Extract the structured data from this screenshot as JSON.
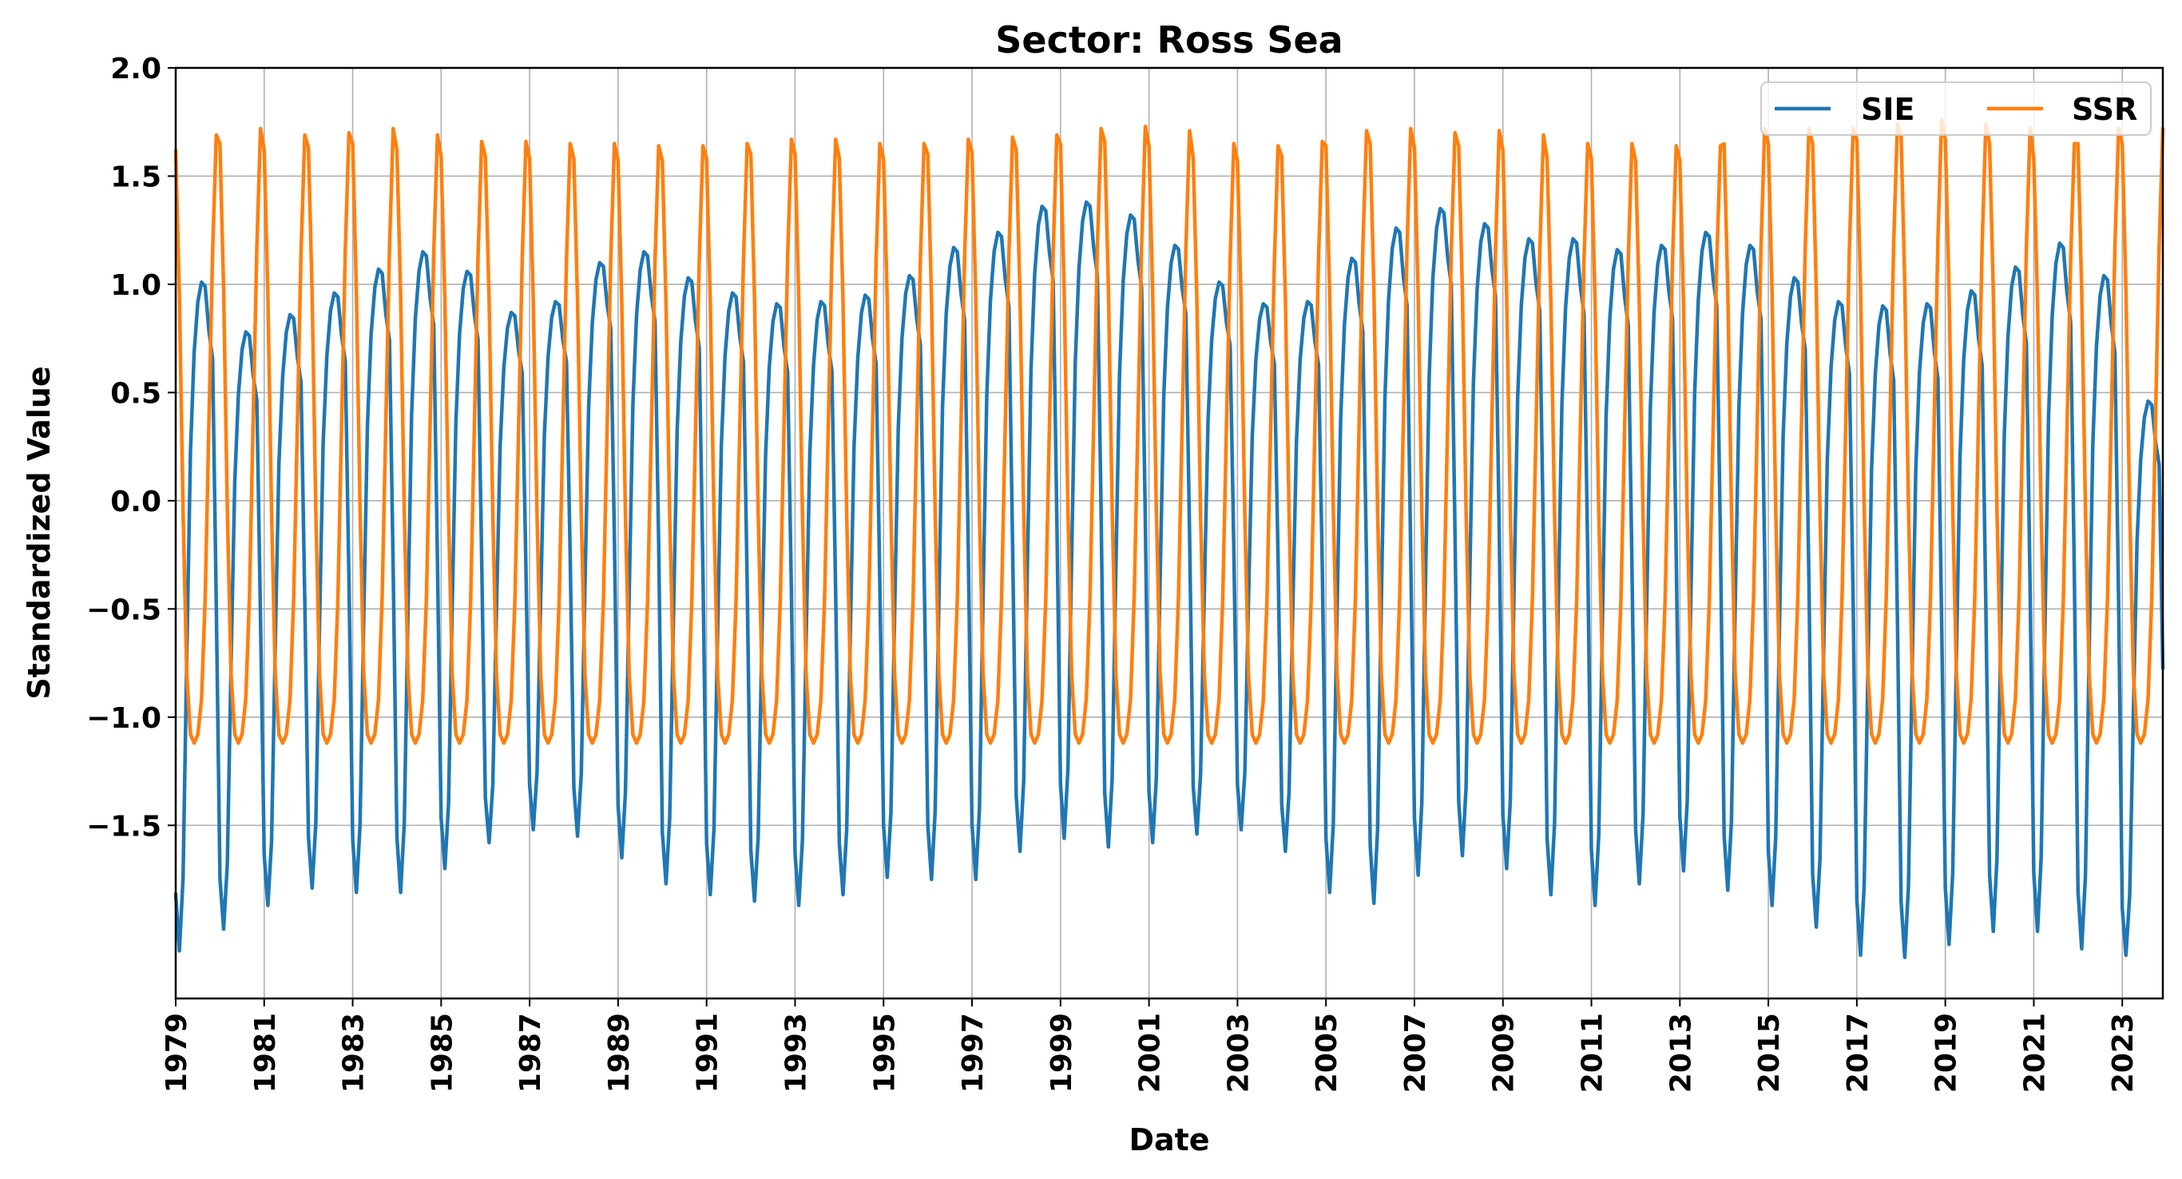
{
  "chart_data": {
    "type": "line",
    "title": "Sector: Ross Sea",
    "xlabel": "Date",
    "ylabel": "Standardized Value",
    "xlim": [
      "1979-01",
      "2023-12"
    ],
    "ylim": [
      -2.3,
      2.0
    ],
    "x_ticks": [
      "1979",
      "1981",
      "1983",
      "1985",
      "1987",
      "1989",
      "1991",
      "1993",
      "1995",
      "1997",
      "1999",
      "2001",
      "2003",
      "2005",
      "2007",
      "2009",
      "2011",
      "2013",
      "2015",
      "2017",
      "2019",
      "2021",
      "2023"
    ],
    "y_ticks": [
      2.0,
      1.5,
      1.0,
      0.5,
      0.0,
      -0.5,
      -1.0,
      -1.5
    ],
    "y_tick_labels": [
      "2.0",
      "1.5",
      "1.0",
      "0.5",
      "0.0",
      "−0.5",
      "−1.0",
      "−1.5"
    ],
    "grid": true,
    "legend_position": "top-right",
    "legend_columns": 2,
    "series": [
      {
        "name": "SIE",
        "color": "#1f77b4",
        "start": "1979-01",
        "frequency": "monthly",
        "seasonal_shape": [
          -1.82,
          -2.08,
          -1.75,
          -0.75,
          0.2,
          0.65,
          0.88,
          0.97,
          0.95,
          0.75,
          0.62,
          -0.5
        ],
        "annual_min": [
          -2.08,
          -1.98,
          -1.87,
          -1.79,
          -1.81,
          -1.81,
          -1.7,
          -1.58,
          -1.52,
          -1.55,
          -1.65,
          -1.77,
          -1.82,
          -1.85,
          -1.87,
          -1.82,
          -1.74,
          -1.75,
          -1.75,
          -1.62,
          -1.56,
          -1.6,
          -1.58,
          -1.54,
          -1.52,
          -1.62,
          -1.81,
          -1.86,
          -1.73,
          -1.64,
          -1.7,
          -1.82,
          -1.87,
          -1.77,
          -1.71,
          -1.8,
          -1.87,
          -1.97,
          -2.1,
          -2.11,
          -2.05,
          -1.99,
          -1.99,
          -2.07,
          -2.1
        ],
        "annual_max": [
          1.01,
          0.78,
          0.86,
          0.96,
          1.07,
          1.15,
          1.06,
          0.87,
          0.92,
          1.1,
          1.15,
          1.03,
          0.96,
          0.91,
          0.92,
          0.95,
          1.04,
          1.17,
          1.24,
          1.36,
          1.38,
          1.32,
          1.18,
          1.01,
          0.91,
          0.92,
          1.12,
          1.26,
          1.35,
          1.28,
          1.21,
          1.21,
          1.16,
          1.18,
          1.24,
          1.18,
          1.03,
          0.92,
          0.9,
          0.91,
          0.97,
          1.08,
          1.19,
          1.04,
          0.46
        ]
      },
      {
        "name": "SSR",
        "color": "#ff7f0e",
        "start": "1979-01",
        "frequency": "monthly",
        "seasonal_shape": [
          1.62,
          0.95,
          -0.05,
          -0.8,
          -1.08,
          -1.12,
          -1.08,
          -0.92,
          -0.45,
          0.35,
          1.15,
          1.69
        ],
        "annual_max": [
          1.69,
          1.72,
          1.69,
          1.7,
          1.72,
          1.69,
          1.66,
          1.66,
          1.65,
          1.65,
          1.64,
          1.64,
          1.65,
          1.67,
          1.67,
          1.65,
          1.65,
          1.67,
          1.68,
          1.69,
          1.72,
          1.73,
          1.71,
          1.65,
          1.64,
          1.66,
          1.71,
          1.72,
          1.7,
          1.71,
          1.69,
          1.65,
          1.65,
          1.64,
          1.64,
          1.72,
          1.72,
          1.72,
          1.74,
          1.76,
          1.74,
          1.72,
          1.65,
          1.72,
          1.72
        ],
        "annual_min": [
          -1.12,
          -1.12,
          -1.12,
          -1.12,
          -1.12,
          -1.12,
          -1.12,
          -1.12,
          -1.12,
          -1.12,
          -1.12,
          -1.12,
          -1.12,
          -1.12,
          -1.12,
          -1.12,
          -1.12,
          -1.12,
          -1.12,
          -1.12,
          -1.12,
          -1.12,
          -1.12,
          -1.12,
          -1.12,
          -1.12,
          -1.12,
          -1.12,
          -1.12,
          -1.12,
          -1.12,
          -1.12,
          -1.12,
          -1.12,
          -1.12,
          -1.12,
          -1.12,
          -1.12,
          -1.12,
          -1.12,
          -1.12,
          -1.12,
          -1.12,
          -1.12,
          -1.12
        ]
      }
    ]
  }
}
